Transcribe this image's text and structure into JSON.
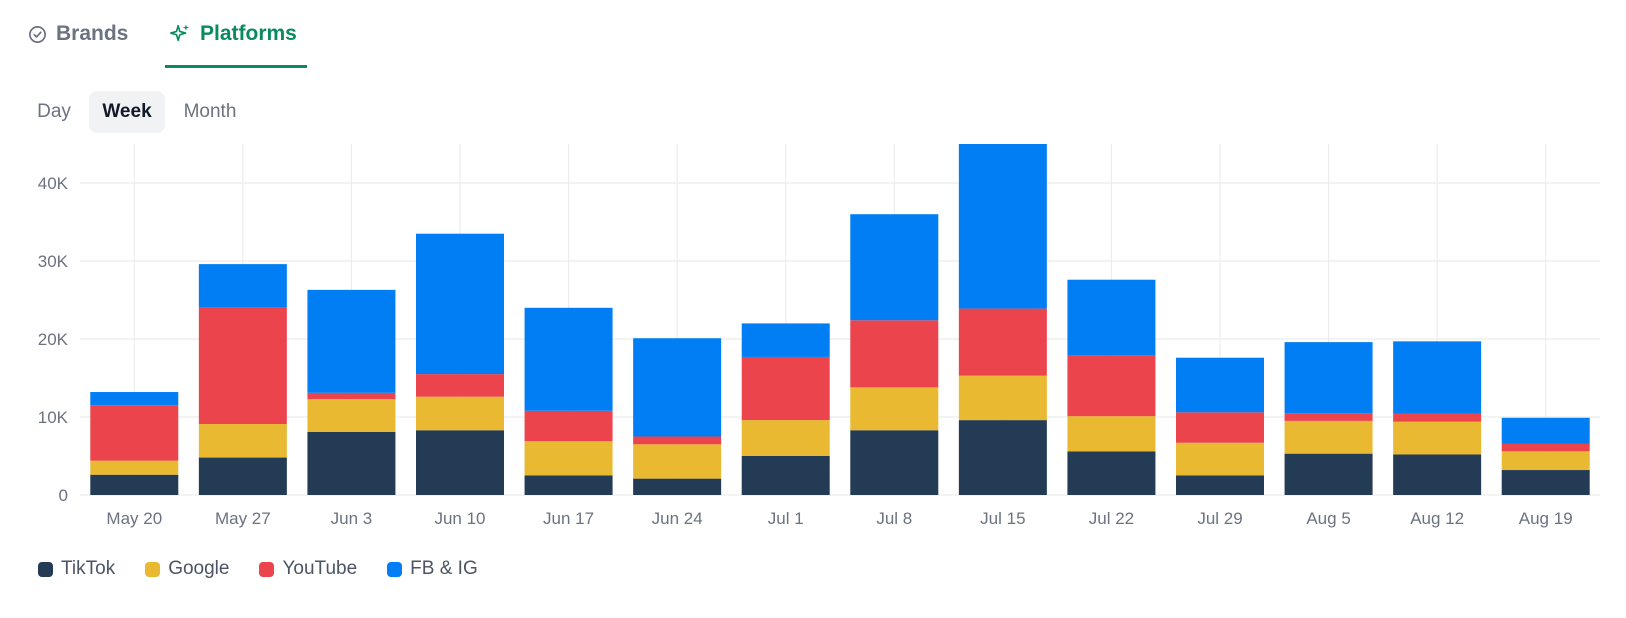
{
  "tabs": [
    {
      "label": "Brands",
      "icon": "check-circle-icon",
      "active": false
    },
    {
      "label": "Platforms",
      "icon": "sparkle-icon",
      "active": true
    }
  ],
  "periods": [
    {
      "label": "Day",
      "active": false
    },
    {
      "label": "Week",
      "active": true
    },
    {
      "label": "Month",
      "active": false
    }
  ],
  "colors": {
    "accent": "#0b8a5f",
    "TikTok": "#243b55",
    "Google": "#e8b931",
    "YouTube": "#ec444c",
    "FB & IG": "#027ef4"
  },
  "chart_data": {
    "type": "bar",
    "stacked": true,
    "categories": [
      "May 20",
      "May 27",
      "Jun 3",
      "Jun 10",
      "Jun 17",
      "Jun 24",
      "Jul 1",
      "Jul 8",
      "Jul 15",
      "Jul 22",
      "Jul 29",
      "Aug 5",
      "Aug 12",
      "Aug 19"
    ],
    "series": [
      {
        "name": "TikTok",
        "color": "#243b55",
        "values": [
          2600,
          4800,
          8100,
          8300,
          2500,
          2100,
          5000,
          8300,
          9600,
          5600,
          2500,
          5300,
          5200,
          3200
        ]
      },
      {
        "name": "Google",
        "color": "#e8b931",
        "values": [
          1800,
          4300,
          4200,
          4300,
          4400,
          4400,
          4600,
          5500,
          5700,
          4500,
          4200,
          4200,
          4200,
          2400
        ]
      },
      {
        "name": "YouTube",
        "color": "#ec444c",
        "values": [
          7100,
          15000,
          800,
          2900,
          3900,
          1000,
          8100,
          8600,
          8600,
          7800,
          3900,
          1000,
          1000,
          1000
        ]
      },
      {
        "name": "FB & IG",
        "color": "#027ef4",
        "values": [
          1700,
          5500,
          13200,
          18000,
          13200,
          12600,
          4300,
          13600,
          21100,
          9700,
          7000,
          9100,
          9300,
          3300
        ]
      }
    ],
    "yticks": [
      "0",
      "10K",
      "20K",
      "30K",
      "40K"
    ],
    "ylim": [
      0,
      45000
    ],
    "grid": true,
    "legend_position": "bottom-left",
    "title": "",
    "xlabel": "",
    "ylabel": ""
  }
}
